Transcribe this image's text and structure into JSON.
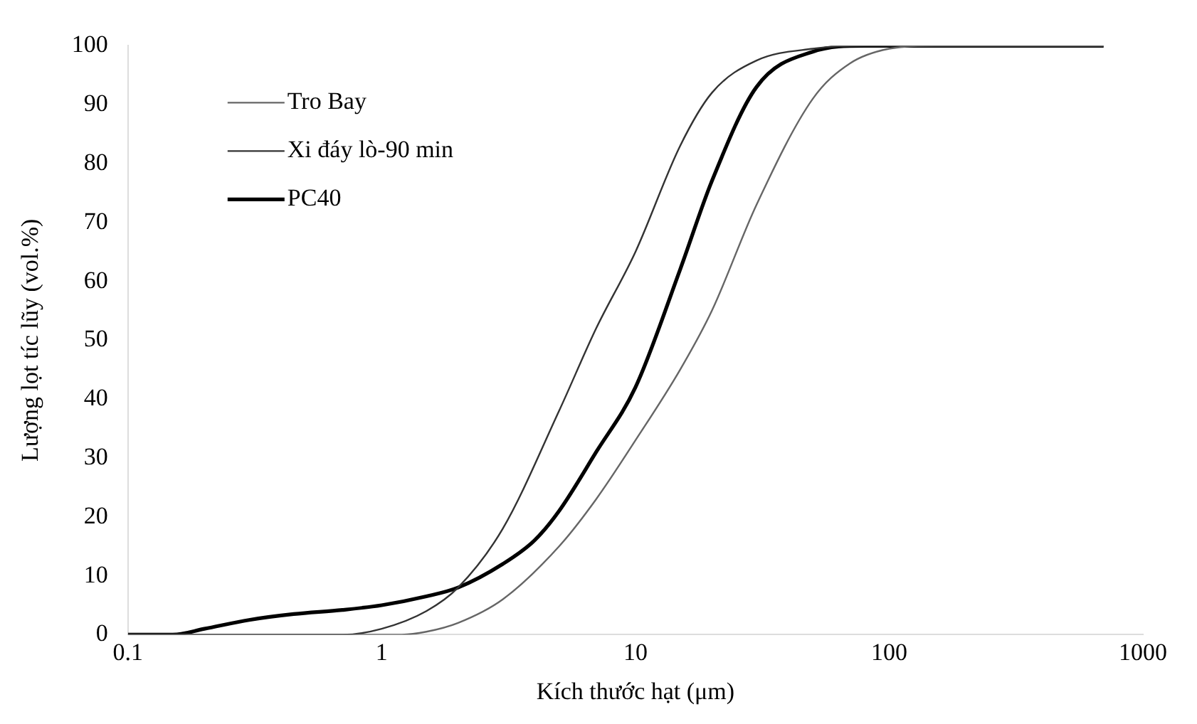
{
  "chart_data": {
    "type": "line",
    "xlabel": "Kích thước hạt (μm)",
    "ylabel": "Lượng lọt tíc lũy (vol.%)",
    "log": "x",
    "xlim": [
      0.1,
      1000
    ],
    "xticks": [
      0.1,
      1,
      10,
      100,
      1000
    ],
    "ylim": [
      0,
      100
    ],
    "yticks": [
      0,
      10,
      20,
      30,
      40,
      50,
      60,
      70,
      80,
      90,
      100
    ],
    "grid": false,
    "legend": "top left",
    "marker": "none",
    "line_style": "solid",
    "series": [
      {
        "name": "Tro Bay",
        "color": "#666666",
        "x": [
          0.1,
          1.2,
          1.5,
          2,
          3,
          5,
          7,
          10,
          15,
          20,
          30,
          50,
          70,
          100,
          150,
          700
        ],
        "values": [
          0,
          0,
          0.5,
          2,
          6,
          15,
          23,
          33,
          45,
          55,
          73,
          91,
          97,
          99.5,
          100,
          100
        ]
      },
      {
        "name": "Xi đáy lò-90 min",
        "color": "#333333",
        "x": [
          0.1,
          0.7,
          1,
          1.5,
          2,
          3,
          5,
          7,
          10,
          15,
          20,
          30,
          50,
          80,
          700
        ],
        "values": [
          0,
          0,
          1,
          4,
          8,
          18,
          38,
          52,
          65,
          83,
          92,
          97.5,
          99.5,
          100,
          100
        ]
      },
      {
        "name": "PC40",
        "color": "#000000",
        "x": [
          0.1,
          0.15,
          0.2,
          0.3,
          0.45,
          0.7,
          1,
          1.5,
          2,
          3,
          4,
          5,
          7,
          10,
          15,
          20,
          30,
          50,
          80,
          700
        ],
        "values": [
          0,
          0,
          1,
          2.5,
          3.5,
          4.2,
          5,
          6.5,
          8,
          12,
          16,
          21,
          31,
          42,
          62,
          77,
          93,
          99,
          100,
          100
        ]
      }
    ]
  }
}
